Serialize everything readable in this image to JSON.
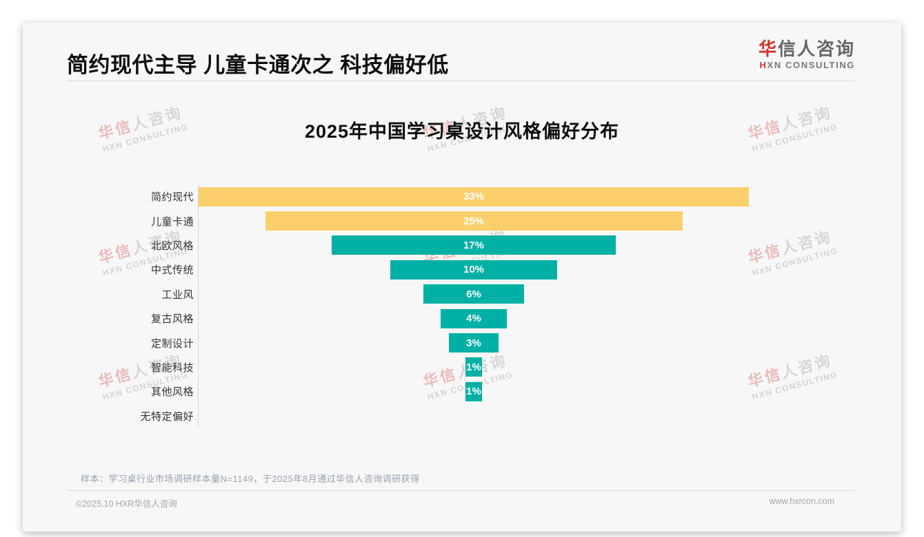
{
  "page": {
    "title": "简约现代主导 儿童卡通次之 科技偏好低",
    "logo": {
      "cn_accent": "华",
      "cn_rest": "信人咨询",
      "en_accent": "H",
      "en_rest": "XN CONSULTING"
    },
    "sample_note": "样本：学习桌行业市场调研样本量N=1149，于2025年8月通过华信人咨询调研获得",
    "footer": {
      "copyright": "©2025.10 HXR华信人咨询",
      "website": "www.hxrcon.com"
    }
  },
  "watermark": {
    "line1_accent": "华信",
    "line1_rest": "人咨询",
    "line2": "HXN CONSULTING"
  },
  "chart_data": {
    "type": "bar",
    "variant": "horizontal-centered-funnel",
    "title": "2025年中国学习桌设计风格偏好分布",
    "categories": [
      "简约现代",
      "儿童卡通",
      "北欧风格",
      "中式传统",
      "工业风",
      "复古风格",
      "定制设计",
      "智能科技",
      "其他风格",
      "无特定偏好"
    ],
    "values": [
      33,
      25,
      17,
      10,
      6,
      4,
      3,
      1,
      1,
      0
    ],
    "unit": "%",
    "bar_colors": [
      "#FBCF6B",
      "#FBCF6B",
      "#00B0A5",
      "#00B0A5",
      "#00B0A5",
      "#00B0A5",
      "#00B0A5",
      "#00B0A5",
      "#00B0A5",
      "#00B0A5"
    ],
    "value_label_color": "#ffffff",
    "xlim": [
      0,
      33
    ],
    "grid": false,
    "legend": false
  },
  "colors": {
    "highlight_yellow": "#FBCF6B",
    "primary_teal": "#00B0A5",
    "logo_red": "#D0342B"
  }
}
